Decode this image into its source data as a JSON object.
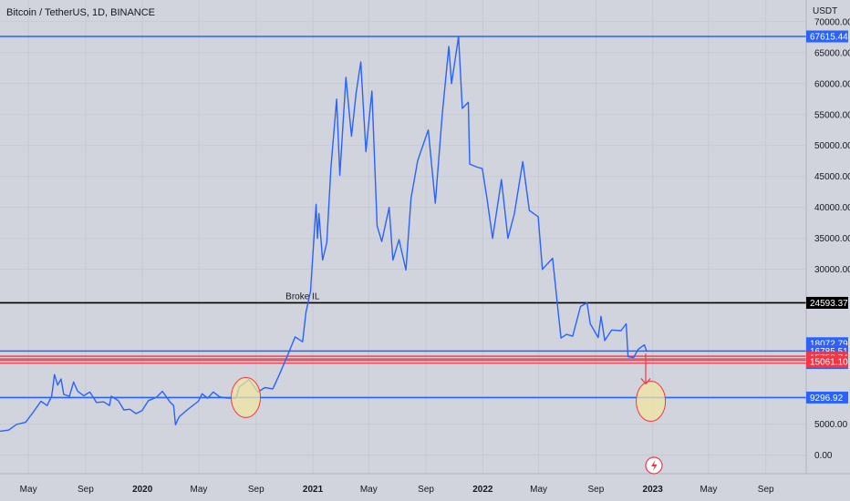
{
  "header": {
    "symbol_title": "Bitcoin / TetherUS, 1D, BINANCE",
    "currency": "USDT"
  },
  "chart_data": {
    "type": "line",
    "series": [
      {
        "color": "#2962ff",
        "points": [
          [
            "2019-03-01",
            3850
          ],
          [
            "2019-03-20",
            4050
          ],
          [
            "2019-04-05",
            4950
          ],
          [
            "2019-04-25",
            5300
          ],
          [
            "2019-05-12",
            7000
          ],
          [
            "2019-05-28",
            8700
          ],
          [
            "2019-06-10",
            8000
          ],
          [
            "2019-06-20",
            9500
          ],
          [
            "2019-06-26",
            13000
          ],
          [
            "2019-07-03",
            11300
          ],
          [
            "2019-07-10",
            12300
          ],
          [
            "2019-07-16",
            9800
          ],
          [
            "2019-07-28",
            9500
          ],
          [
            "2019-08-06",
            11800
          ],
          [
            "2019-08-15",
            10300
          ],
          [
            "2019-08-28",
            9600
          ],
          [
            "2019-09-10",
            10200
          ],
          [
            "2019-09-24",
            8500
          ],
          [
            "2019-10-10",
            8600
          ],
          [
            "2019-10-22",
            8000
          ],
          [
            "2019-10-26",
            9500
          ],
          [
            "2019-11-10",
            8800
          ],
          [
            "2019-11-22",
            7300
          ],
          [
            "2019-12-05",
            7400
          ],
          [
            "2019-12-18",
            6700
          ],
          [
            "2019-12-31",
            7200
          ],
          [
            "2020-01-14",
            8800
          ],
          [
            "2020-01-31",
            9350
          ],
          [
            "2020-02-13",
            10300
          ],
          [
            "2020-02-29",
            8600
          ],
          [
            "2020-03-08",
            8000
          ],
          [
            "2020-03-12",
            4900
          ],
          [
            "2020-03-20",
            6200
          ],
          [
            "2020-04-06",
            7300
          ],
          [
            "2020-04-30",
            8700
          ],
          [
            "2020-05-08",
            9900
          ],
          [
            "2020-05-20",
            9200
          ],
          [
            "2020-06-01",
            10200
          ],
          [
            "2020-06-15",
            9400
          ],
          [
            "2020-07-01",
            9200
          ],
          [
            "2020-07-20",
            9200
          ],
          [
            "2020-07-27",
            11000
          ],
          [
            "2020-08-17",
            12200
          ],
          [
            "2020-09-05",
            10200
          ],
          [
            "2020-09-20",
            10900
          ],
          [
            "2020-10-07",
            10700
          ],
          [
            "2020-10-21",
            13000
          ],
          [
            "2020-11-05",
            15600
          ],
          [
            "2020-11-24",
            19100
          ],
          [
            "2020-12-10",
            18300
          ],
          [
            "2020-12-17",
            23000
          ],
          [
            "2020-12-27",
            26500
          ],
          [
            "2021-01-08",
            40500
          ],
          [
            "2021-01-11",
            35000
          ],
          [
            "2021-01-14",
            39000
          ],
          [
            "2021-01-22",
            31500
          ],
          [
            "2021-01-31",
            34300
          ],
          [
            "2021-02-09",
            46500
          ],
          [
            "2021-02-21",
            57500
          ],
          [
            "2021-02-28",
            45200
          ],
          [
            "2021-03-13",
            61000
          ],
          [
            "2021-03-25",
            51500
          ],
          [
            "2021-04-04",
            58500
          ],
          [
            "2021-04-14",
            63500
          ],
          [
            "2021-04-25",
            49000
          ],
          [
            "2021-05-08",
            58800
          ],
          [
            "2021-05-19",
            37000
          ],
          [
            "2021-05-29",
            34500
          ],
          [
            "2021-06-14",
            40000
          ],
          [
            "2021-06-22",
            31500
          ],
          [
            "2021-07-05",
            34800
          ],
          [
            "2021-07-20",
            29900
          ],
          [
            "2021-07-31",
            41500
          ],
          [
            "2021-08-14",
            47500
          ],
          [
            "2021-08-23",
            49500
          ],
          [
            "2021-09-06",
            52500
          ],
          [
            "2021-09-21",
            40700
          ],
          [
            "2021-10-06",
            55000
          ],
          [
            "2021-10-20",
            66000
          ],
          [
            "2021-10-26",
            60000
          ],
          [
            "2021-11-10",
            67615
          ],
          [
            "2021-11-18",
            56000
          ],
          [
            "2021-12-01",
            57000
          ],
          [
            "2021-12-04",
            47000
          ],
          [
            "2021-12-20",
            46500
          ],
          [
            "2021-12-31",
            46300
          ],
          [
            "2022-01-10",
            41500
          ],
          [
            "2022-01-22",
            35000
          ],
          [
            "2022-02-10",
            44500
          ],
          [
            "2022-02-24",
            35000
          ],
          [
            "2022-03-10",
            39000
          ],
          [
            "2022-03-28",
            47400
          ],
          [
            "2022-04-11",
            39500
          ],
          [
            "2022-04-30",
            38500
          ],
          [
            "2022-05-09",
            30000
          ],
          [
            "2022-05-31",
            31800
          ],
          [
            "2022-06-13",
            22500
          ],
          [
            "2022-06-18",
            18900
          ],
          [
            "2022-06-30",
            19500
          ],
          [
            "2022-07-13",
            19200
          ],
          [
            "2022-07-30",
            24000
          ],
          [
            "2022-08-13",
            24600
          ],
          [
            "2022-08-20",
            21200
          ],
          [
            "2022-09-06",
            19000
          ],
          [
            "2022-09-12",
            22400
          ],
          [
            "2022-09-20",
            18500
          ],
          [
            "2022-10-05",
            20200
          ],
          [
            "2022-10-25",
            20100
          ],
          [
            "2022-11-05",
            21200
          ],
          [
            "2022-11-09",
            15900
          ],
          [
            "2022-11-21",
            15750
          ],
          [
            "2022-12-01",
            17100
          ],
          [
            "2022-12-14",
            17800
          ],
          [
            "2022-12-19",
            16800
          ]
        ]
      }
    ],
    "x_ticks": [
      {
        "label": "May",
        "date": "2019-05-01",
        "bold": false
      },
      {
        "label": "Sep",
        "date": "2019-09-01",
        "bold": false
      },
      {
        "label": "2020",
        "date": "2020-01-01",
        "bold": true
      },
      {
        "label": "May",
        "date": "2020-05-01",
        "bold": false
      },
      {
        "label": "Sep",
        "date": "2020-09-01",
        "bold": false
      },
      {
        "label": "2021",
        "date": "2021-01-01",
        "bold": true
      },
      {
        "label": "May",
        "date": "2021-05-01",
        "bold": false
      },
      {
        "label": "Sep",
        "date": "2021-09-01",
        "bold": false
      },
      {
        "label": "2022",
        "date": "2022-01-01",
        "bold": true
      },
      {
        "label": "May",
        "date": "2022-05-01",
        "bold": false
      },
      {
        "label": "Sep",
        "date": "2022-09-01",
        "bold": false
      },
      {
        "label": "2023",
        "date": "2023-01-01",
        "bold": true
      },
      {
        "label": "May",
        "date": "2023-05-01",
        "bold": false
      },
      {
        "label": "Sep",
        "date": "2023-09-01",
        "bold": false
      }
    ],
    "y_ticks": [
      {
        "value": 70000,
        "label": "70000.00"
      },
      {
        "value": 65000,
        "label": "65000.00"
      },
      {
        "value": 60000,
        "label": "60000.00"
      },
      {
        "value": 55000,
        "label": "55000.00"
      },
      {
        "value": 50000,
        "label": "50000.00"
      },
      {
        "value": 45000,
        "label": "45000.00"
      },
      {
        "value": 40000,
        "label": "40000.00"
      },
      {
        "value": 35000,
        "label": "35000.00"
      },
      {
        "value": 30000,
        "label": "30000.00"
      },
      {
        "value": 5000,
        "label": "5000.00"
      },
      {
        "value": 0,
        "label": "0.00"
      }
    ],
    "ylim": [
      -3000,
      73500
    ],
    "horizontal_lines": [
      {
        "value": 67615.44,
        "color": "#2962ff",
        "label": "67615.44"
      },
      {
        "value": 24593.37,
        "color": "#000000",
        "label": "24593.37",
        "text": "Broke IL",
        "text_date": "2020-12-10"
      },
      {
        "value": 16803.63,
        "color": "#2962ff"
      },
      {
        "value": 15750.74,
        "color": "#f23645",
        "double": true
      },
      {
        "value": 15061.1,
        "color": "#f23645",
        "double": true
      },
      {
        "value": 9296.92,
        "color": "#2962ff",
        "label": "9296.92"
      }
    ],
    "axis_tags": [
      {
        "text": "67615.44",
        "value": 67615.44,
        "bg": "#2962ff"
      },
      {
        "text": "24593.37",
        "value": 24593.37,
        "bg": "#000000"
      },
      {
        "text": "18072.79",
        "value": 18072.79,
        "bg": "#2962ff"
      },
      {
        "text": "16803.63",
        "value": 16803.63,
        "bg": "#f23645"
      },
      {
        "text": "16785.51",
        "value": 16785.51,
        "bg": "#2962ff",
        "stack": 0
      },
      {
        "text": "04:09:49",
        "value": 16785.51,
        "bg": "#2962ff",
        "stack": 1
      },
      {
        "text": "15750.74",
        "value": 15750.74,
        "bg": "#f23645"
      },
      {
        "text": "15061.10",
        "value": 15061.1,
        "bg": "#f23645"
      },
      {
        "text": "9296.92",
        "value": 9296.92,
        "bg": "#2962ff"
      }
    ],
    "annotations": [
      {
        "type": "circle",
        "date": "2020-08-10",
        "value": 9300,
        "fill": "#f0e6a0",
        "stroke": "#f23645"
      },
      {
        "type": "circle",
        "date": "2022-12-28",
        "value": 8700,
        "fill": "#f0e6a0",
        "stroke": "#f23645"
      },
      {
        "type": "arrow",
        "from_date": "2022-12-17",
        "from_value": 16400,
        "to_date": "2022-12-17",
        "to_value": 11500,
        "color": "#f23645"
      }
    ]
  }
}
